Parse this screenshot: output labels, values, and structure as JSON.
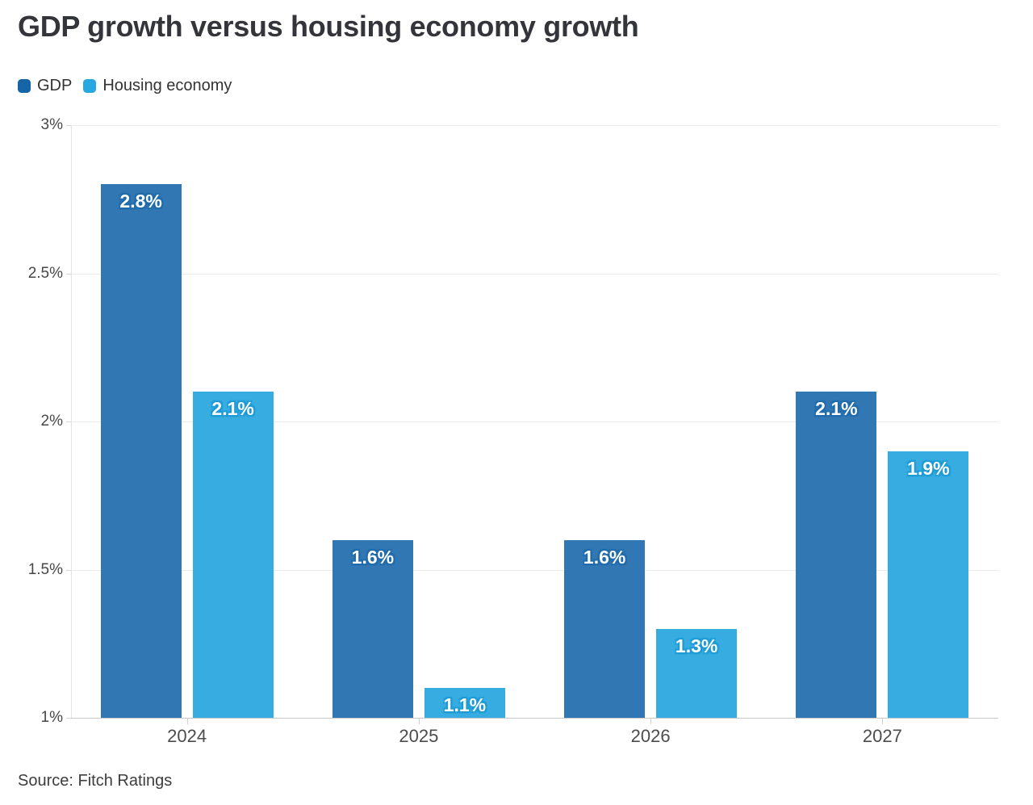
{
  "title": "GDP growth versus housing economy growth",
  "legend": [
    {
      "label": "GDP",
      "color": "#1565a8"
    },
    {
      "label": "Housing economy",
      "color": "#29a7e0"
    }
  ],
  "source": "Source: Fitch Ratings",
  "chart_data": {
    "type": "bar",
    "title": "GDP growth versus housing economy growth",
    "categories": [
      "2024",
      "2025",
      "2026",
      "2027"
    ],
    "series": [
      {
        "name": "GDP",
        "color": "#3177b3",
        "halo_color": "#1f6bab",
        "values": [
          2.8,
          1.6,
          1.6,
          2.1
        ],
        "labels": [
          "2.8%",
          "1.6%",
          "1.6%",
          "2.1%"
        ]
      },
      {
        "name": "Housing economy",
        "color": "#36ace1",
        "halo_color": "#1d9ad4",
        "values": [
          2.1,
          1.1,
          1.3,
          1.9
        ],
        "labels": [
          "2.1%",
          "1.1%",
          "1.3%",
          "1.9%"
        ]
      }
    ],
    "xlabel": "",
    "ylabel": "",
    "ylim": [
      1,
      3
    ],
    "y_ticks": [
      "3%",
      "2.5%",
      "2%",
      "1.5%",
      "1%"
    ],
    "y_tick_values": [
      3,
      2.5,
      2,
      1.5,
      1
    ],
    "grid": true,
    "legend_position": "top-left"
  }
}
